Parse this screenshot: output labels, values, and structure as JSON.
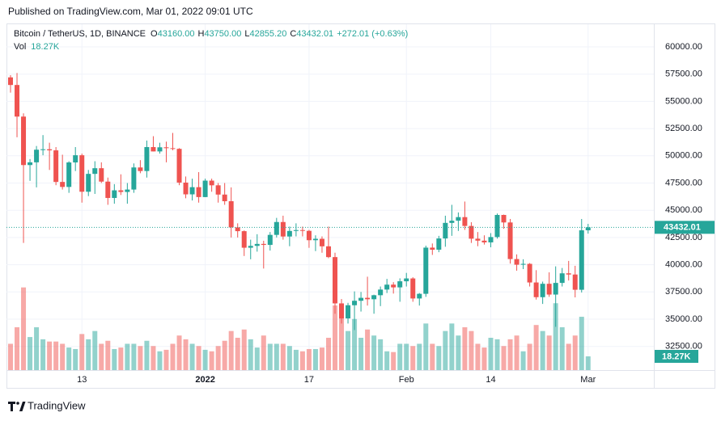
{
  "published": "Published on TradingView.com, Mar 01, 2022 09:01 UTC",
  "footer": "TradingView",
  "chart_data": {
    "type": "candlestick",
    "symbol": "Bitcoin / TetherUS, 1D, BINANCE",
    "legend_keys": [
      "O",
      "H",
      "L",
      "C"
    ],
    "legend_values": [
      "43160.00",
      "43750.00",
      "42855.20",
      "43432.01"
    ],
    "change": "+272.01 (+0.63%)",
    "up_color": "#26a69a",
    "down_color": "#ef5350",
    "categories": [
      null,
      null,
      null,
      null,
      null,
      null,
      null,
      null,
      null,
      null,
      null,
      "13",
      null,
      null,
      null,
      null,
      null,
      null,
      null,
      null,
      null,
      null,
      null,
      null,
      null,
      null,
      null,
      null,
      null,
      null,
      "2022",
      null,
      null,
      null,
      null,
      null,
      null,
      null,
      null,
      null,
      null,
      null,
      null,
      null,
      null,
      null,
      "17",
      null,
      null,
      null,
      null,
      null,
      null,
      null,
      null,
      null,
      null,
      null,
      null,
      null,
      null,
      "Feb",
      null,
      null,
      null,
      null,
      null,
      null,
      null,
      null,
      null,
      null,
      null,
      null,
      "14",
      null,
      null,
      null,
      null,
      null,
      null,
      null,
      null,
      null,
      null,
      null,
      null,
      null,
      null,
      "Mar"
    ],
    "open": [
      57200,
      56500,
      53600,
      49150,
      49400,
      50560,
      50600,
      50500,
      47600,
      47140,
      49390,
      50050,
      46700,
      48340,
      48860,
      47630,
      46130,
      46830,
      46680,
      46900,
      48930,
      48600,
      50800,
      50400,
      50780,
      50700,
      50640,
      47540,
      46460,
      47120,
      46210,
      47720,
      47290,
      46440,
      45830,
      43430,
      43080,
      41560,
      41730,
      41910,
      41820,
      42740,
      43920,
      42590,
      43100,
      43180,
      43110,
      42250,
      42380,
      41690,
      40700,
      36450,
      35070,
      36280,
      36690,
      36960,
      36830,
      37200,
      37720,
      38170,
      37920,
      38480,
      38740,
      36900,
      37330,
      41570,
      41380,
      42410,
      43840,
      44040,
      44370,
      43560,
      42390,
      42210,
      42050,
      42540,
      44570,
      43880,
      40520,
      40000,
      40080,
      38370,
      37020,
      38250,
      37260,
      38330,
      39210,
      39100,
      37700,
      43160
    ],
    "high": [
      57400,
      57600,
      53900,
      49700,
      50900,
      51900,
      51200,
      50800,
      50100,
      49500,
      50800,
      50200,
      48700,
      49500,
      49400,
      48000,
      47400,
      48300,
      47500,
      49300,
      49600,
      51400,
      51800,
      51200,
      51300,
      52100,
      50700,
      48100,
      47900,
      48500,
      47900,
      47900,
      47500,
      47500,
      47100,
      43800,
      43150,
      42300,
      42800,
      42200,
      43000,
      44300,
      44500,
      43500,
      43800,
      43500,
      43200,
      42700,
      42600,
      43500,
      41100,
      36850,
      36500,
      37550,
      37500,
      38900,
      37250,
      38000,
      38700,
      38400,
      38750,
      39250,
      38850,
      37400,
      41750,
      41950,
      42650,
      44500,
      45500,
      44800,
      45800,
      43900,
      43000,
      42700,
      42900,
      44700,
      44600,
      44200,
      40950,
      40500,
      40150,
      39500,
      38450,
      39300,
      39850,
      39700,
      40350,
      39900,
      44200,
      43750
    ],
    "low": [
      55800,
      51700,
      42000,
      47700,
      47100,
      50050,
      48700,
      47300,
      46900,
      46600,
      48600,
      45700,
      46300,
      46500,
      47500,
      45500,
      45600,
      46400,
      45600,
      46600,
      48400,
      48000,
      50400,
      50200,
      49400,
      50500,
      47300,
      46100,
      45900,
      45700,
      46200,
      46700,
      45700,
      45500,
      42500,
      42500,
      40800,
      40500,
      41200,
      39650,
      41300,
      42500,
      42300,
      41700,
      42600,
      42600,
      41550,
      41250,
      41100,
      40600,
      35500,
      34600,
      34600,
      34000,
      35700,
      36250,
      35500,
      36200,
      37400,
      37350,
      36600,
      38000,
      36600,
      36250,
      37050,
      40900,
      41150,
      41650,
      42650,
      43100,
      43200,
      42000,
      41700,
      41850,
      41600,
      42400,
      43300,
      40100,
      39450,
      39600,
      38000,
      36800,
      36400,
      37050,
      34300,
      38000,
      38550,
      37000,
      37450,
      42855.2
    ],
    "close": [
      56500,
      53600,
      49150,
      49400,
      50560,
      50600,
      50500,
      47600,
      47140,
      49390,
      50050,
      46700,
      48340,
      48860,
      47630,
      46130,
      46830,
      46680,
      46900,
      48930,
      48600,
      50800,
      50400,
      50780,
      50700,
      50640,
      47540,
      46460,
      47120,
      46210,
      47720,
      47290,
      46440,
      45830,
      43430,
      43080,
      41560,
      41730,
      41910,
      41820,
      42740,
      43920,
      42590,
      43100,
      43180,
      43110,
      42250,
      42380,
      41690,
      40700,
      36450,
      35070,
      36280,
      36690,
      36960,
      36830,
      37200,
      37720,
      38170,
      37920,
      38480,
      38740,
      36900,
      37330,
      41570,
      41380,
      42410,
      43840,
      44040,
      44370,
      43560,
      42390,
      42210,
      42050,
      42540,
      44570,
      43880,
      40520,
      40000,
      40080,
      38370,
      37020,
      38250,
      37260,
      38330,
      39210,
      39100,
      37700,
      43160,
      43432.01
    ],
    "volume": {
      "name": "Vol",
      "last_label": "18.27K",
      "values": [
        35000,
        57000,
        110000,
        44000,
        57000,
        41000,
        38000,
        38000,
        35000,
        30000,
        28000,
        48000,
        41000,
        52000,
        35000,
        39000,
        28000,
        30000,
        35000,
        35000,
        32000,
        39000,
        32000,
        25000,
        27000,
        35000,
        46000,
        41000,
        35000,
        32000,
        27000,
        25000,
        32000,
        39000,
        52000,
        43000,
        54000,
        41000,
        30000,
        46000,
        35000,
        35000,
        35000,
        32000,
        27000,
        25000,
        28000,
        28000,
        30000,
        43000,
        86000,
        70000,
        52000,
        68000,
        43000,
        54000,
        46000,
        41000,
        25000,
        24000,
        35000,
        35000,
        32000,
        35000,
        62000,
        35000,
        32000,
        52000,
        62000,
        46000,
        57000,
        52000,
        35000,
        30000,
        43000,
        41000,
        32000,
        41000,
        46000,
        25000,
        35000,
        60000,
        52000,
        46000,
        89000,
        57000,
        35000,
        46000,
        71000,
        18270
      ]
    },
    "ylim": [
      30326,
      62077
    ],
    "yticks": [
      {
        "value": 32500,
        "label": "32500.00"
      },
      {
        "value": 35000,
        "label": "35000.00"
      },
      {
        "value": 37500,
        "label": "37500.00"
      },
      {
        "value": 40000,
        "label": "40000.00"
      },
      {
        "value": 42500,
        "label": "42500.00"
      },
      {
        "value": 45000,
        "label": "45000.00"
      },
      {
        "value": 47500,
        "label": "47500.00"
      },
      {
        "value": 50000,
        "label": "50000.00"
      },
      {
        "value": 52500,
        "label": "52500.00"
      },
      {
        "value": 55000,
        "label": "55000.00"
      },
      {
        "value": 57500,
        "label": "57500.00"
      },
      {
        "value": 60000,
        "label": "60000.00"
      }
    ],
    "grid": true
  }
}
